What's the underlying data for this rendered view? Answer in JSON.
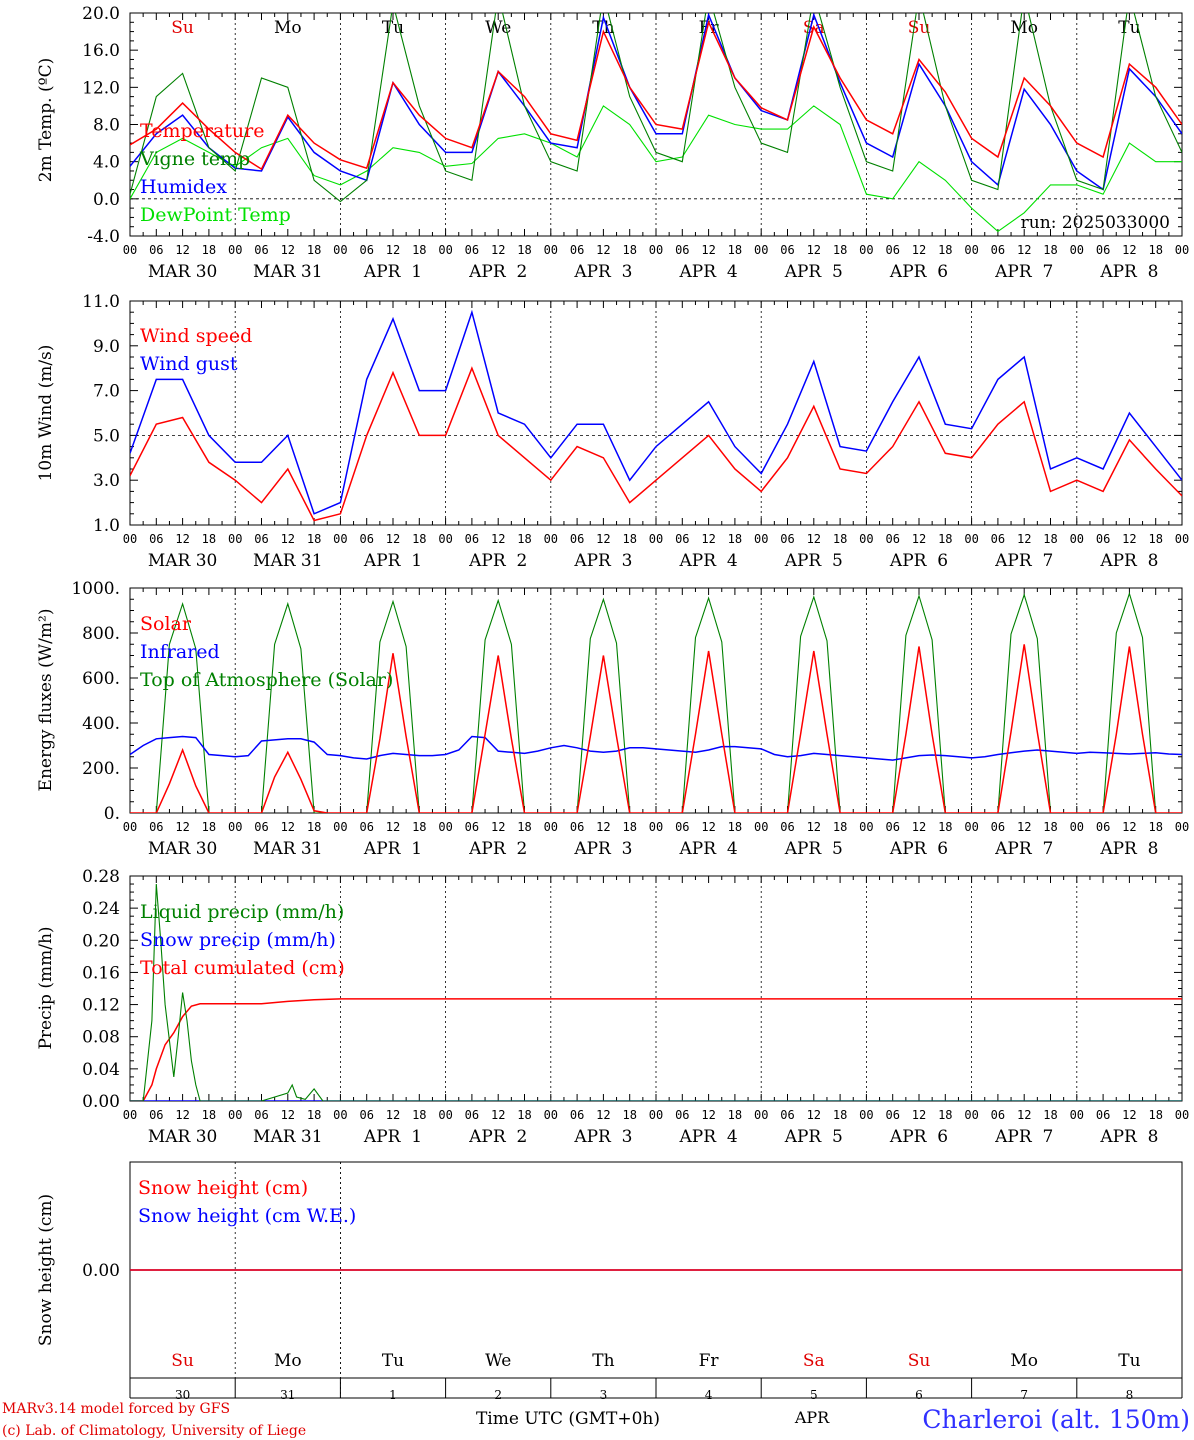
{
  "days": {
    "weekday": [
      "Su",
      "Mo",
      "Tu",
      "We",
      "Th",
      "Fr",
      "Sa",
      "Su",
      "Mo",
      "Tu"
    ],
    "weekday_color": [
      "#e00000",
      "#000000",
      "#000000",
      "#000000",
      "#000000",
      "#000000",
      "#e00000",
      "#e00000",
      "#000000",
      "#000000"
    ],
    "date_label": [
      "MAR 30",
      "MAR 31",
      "APR  1",
      "APR  2",
      "APR  3",
      "APR  4",
      "APR  5",
      "APR  6",
      "APR  7",
      "APR  8"
    ],
    "day_number": [
      "30",
      "31",
      "1",
      "2",
      "3",
      "4",
      "5",
      "6",
      "7",
      "8"
    ],
    "hour_ticks": [
      "00",
      "06",
      "12",
      "18"
    ],
    "last_tick": "00"
  },
  "footer": {
    "model_line": "MARv3.14 model forced by GFS",
    "copyright_line": "(c) Lab. of Climatology, University of Liege",
    "xlabel": "Time UTC (GMT+0h)",
    "month_label": "APR",
    "station": "Charleroi (alt. 150m)"
  },
  "colors": {
    "red": "#ff0000",
    "blue": "#0000ff",
    "green": "#008000",
    "lightgreen": "#00e000",
    "axis": "#000000",
    "footer_red": "#e00000",
    "station_blue": "#3030ff"
  },
  "chart_data": [
    {
      "id": "temperature",
      "type": "line",
      "ylabel": "2m Temp. (ºC)",
      "ylim": [
        -4.0,
        20.0
      ],
      "yticks": [
        "-4.0",
        "0.0",
        "4.0",
        "8.0",
        "12.0",
        "16.0",
        "20.0"
      ],
      "ytick_values": [
        -4,
        0,
        4,
        8,
        12,
        16,
        20
      ],
      "ref_line": 0.0,
      "annotation": "run: 2025033000",
      "x_hours": [
        0,
        6,
        12,
        18,
        24,
        30,
        36,
        42,
        48,
        54,
        60,
        66,
        72,
        78,
        84,
        90,
        96,
        102,
        108,
        114,
        120,
        126,
        132,
        138,
        144,
        150,
        156,
        162,
        168,
        174,
        180,
        186,
        192,
        198,
        204,
        210,
        216,
        222,
        228,
        234,
        240
      ],
      "series": [
        {
          "name": "Temperature",
          "color": "#ff0000",
          "values": [
            5.8,
            7.5,
            10.3,
            7.5,
            5.0,
            3.2,
            9.0,
            6.0,
            4.2,
            3.3,
            12.5,
            9.0,
            6.5,
            5.5,
            13.7,
            11.0,
            7.0,
            6.3,
            18.0,
            12.0,
            8.0,
            7.5,
            19.0,
            13.0,
            9.8,
            8.5,
            18.5,
            13.0,
            8.5,
            7.0,
            15.0,
            11.5,
            6.5,
            4.5,
            13.0,
            10.0,
            6.0,
            4.5,
            14.5,
            12.0,
            8.0
          ]
        },
        {
          "name": "Vigne temp",
          "color": "#008000",
          "values": [
            0.5,
            11.0,
            13.5,
            5.5,
            3.0,
            13.0,
            12.0,
            2.0,
            -0.3,
            2.0,
            21.0,
            10.0,
            3.0,
            2.0,
            22.0,
            10.0,
            4.0,
            3.0,
            22.0,
            11.0,
            5.0,
            4.0,
            22.0,
            12.0,
            6.0,
            5.0,
            22.0,
            12.0,
            4.0,
            3.0,
            22.0,
            10.0,
            2.0,
            1.0,
            22.0,
            10.0,
            2.0,
            1.0,
            22.0,
            11.0,
            5.0
          ]
        },
        {
          "name": "Humidex",
          "color": "#0000ff",
          "values": [
            3.5,
            7.0,
            9.0,
            5.5,
            3.3,
            3.0,
            8.8,
            5.0,
            3.0,
            2.0,
            12.5,
            8.0,
            5.0,
            5.0,
            13.7,
            10.0,
            6.0,
            5.5,
            19.5,
            12.0,
            7.0,
            7.0,
            19.8,
            13.0,
            9.5,
            8.5,
            19.8,
            12.5,
            6.0,
            4.5,
            14.5,
            10.0,
            4.0,
            1.5,
            11.8,
            8.0,
            3.0,
            1.0,
            14.0,
            11.0,
            7.0
          ]
        },
        {
          "name": "DewPoint Temp",
          "color": "#00e000",
          "values": [
            0.0,
            5.0,
            6.5,
            5.0,
            3.5,
            5.5,
            6.5,
            2.5,
            1.5,
            3.0,
            5.5,
            5.0,
            3.5,
            3.8,
            6.5,
            7.0,
            6.0,
            4.5,
            10.0,
            8.0,
            4.0,
            4.5,
            9.0,
            8.0,
            7.5,
            7.5,
            10.0,
            8.0,
            0.5,
            0.0,
            4.0,
            2.0,
            -1.0,
            -3.5,
            -1.5,
            1.5,
            1.5,
            0.5,
            6.0,
            4.0,
            4.0
          ]
        }
      ]
    },
    {
      "id": "wind",
      "type": "line",
      "ylabel": "10m Wind (m/s)",
      "ylim": [
        1.0,
        11.0
      ],
      "yticks": [
        "1.0",
        "3.0",
        "5.0",
        "7.0",
        "9.0",
        "11.0"
      ],
      "ytick_values": [
        1,
        3,
        5,
        7,
        9,
        11
      ],
      "ref_line": 5.0,
      "x_hours": [
        0,
        6,
        12,
        18,
        24,
        30,
        36,
        42,
        48,
        54,
        60,
        66,
        72,
        78,
        84,
        90,
        96,
        102,
        108,
        114,
        120,
        126,
        132,
        138,
        144,
        150,
        156,
        162,
        168,
        174,
        180,
        186,
        192,
        198,
        204,
        210,
        216,
        222,
        228,
        234,
        240
      ],
      "series": [
        {
          "name": "Wind speed",
          "color": "#ff0000",
          "values": [
            3.2,
            5.5,
            5.8,
            3.8,
            3.0,
            2.0,
            3.5,
            1.2,
            1.5,
            5.0,
            7.8,
            5.0,
            5.0,
            8.0,
            5.0,
            4.0,
            3.0,
            4.5,
            4.0,
            2.0,
            3.0,
            4.0,
            5.0,
            3.5,
            2.5,
            4.0,
            6.3,
            3.5,
            3.3,
            4.5,
            6.5,
            4.2,
            4.0,
            5.5,
            6.5,
            2.5,
            3.0,
            2.5,
            4.8,
            3.5,
            2.3
          ]
        },
        {
          "name": "Wind gust",
          "color": "#0000ff",
          "values": [
            4.2,
            7.5,
            7.5,
            5.0,
            3.8,
            3.8,
            5.0,
            1.5,
            2.0,
            7.5,
            10.2,
            7.0,
            7.0,
            10.5,
            6.0,
            5.5,
            4.0,
            5.5,
            5.5,
            3.0,
            4.5,
            5.5,
            6.5,
            4.5,
            3.3,
            5.5,
            8.3,
            4.5,
            4.3,
            6.5,
            8.5,
            5.5,
            5.3,
            7.5,
            8.5,
            3.5,
            4.0,
            3.5,
            6.0,
            4.5,
            3.0
          ]
        }
      ]
    },
    {
      "id": "energy",
      "type": "line",
      "ylabel": "Energy fluxes (W/m²)",
      "ylim": [
        0,
        1000
      ],
      "yticks": [
        "0.",
        "200.",
        "400.",
        "600.",
        "800.",
        "1000."
      ],
      "ytick_values": [
        0,
        200,
        400,
        600,
        800,
        1000
      ],
      "x_hours": [
        0,
        3,
        6,
        9,
        12,
        15,
        18,
        21,
        24,
        27,
        30,
        33,
        36,
        39,
        42,
        45,
        48,
        51,
        54,
        57,
        60,
        63,
        66,
        69,
        72,
        75,
        78,
        81,
        84,
        87,
        90,
        93,
        96,
        99,
        102,
        105,
        108,
        111,
        114,
        117,
        120,
        123,
        126,
        129,
        132,
        135,
        138,
        141,
        144,
        147,
        150,
        153,
        156,
        159,
        162,
        165,
        168,
        171,
        174,
        177,
        180,
        183,
        186,
        189,
        192,
        195,
        198,
        201,
        204,
        207,
        210,
        213,
        216,
        219,
        222,
        225,
        228,
        231,
        234,
        237,
        240
      ],
      "series": [
        {
          "name": "Solar",
          "color": "#ff0000",
          "values": [
            0,
            0,
            0,
            130,
            280,
            120,
            0,
            0,
            0,
            0,
            0,
            160,
            270,
            150,
            10,
            0,
            0,
            0,
            0,
            330,
            710,
            340,
            0,
            0,
            0,
            0,
            0,
            350,
            700,
            330,
            0,
            0,
            0,
            0,
            0,
            340,
            700,
            340,
            0,
            0,
            0,
            0,
            0,
            350,
            720,
            350,
            0,
            0,
            0,
            0,
            0,
            350,
            720,
            350,
            0,
            0,
            0,
            0,
            0,
            350,
            740,
            350,
            0,
            0,
            0,
            0,
            0,
            360,
            750,
            360,
            0,
            0,
            0,
            0,
            0,
            350,
            740,
            350,
            0,
            0,
            0
          ]
        },
        {
          "name": "Infrared",
          "color": "#0000ff",
          "values": [
            260,
            300,
            330,
            335,
            340,
            335,
            260,
            255,
            250,
            255,
            320,
            325,
            330,
            330,
            315,
            260,
            255,
            245,
            240,
            255,
            265,
            260,
            255,
            255,
            260,
            280,
            340,
            335,
            275,
            270,
            265,
            275,
            290,
            300,
            290,
            275,
            270,
            275,
            290,
            290,
            285,
            280,
            275,
            270,
            280,
            295,
            295,
            290,
            285,
            260,
            250,
            255,
            265,
            260,
            255,
            250,
            245,
            240,
            235,
            245,
            255,
            258,
            255,
            250,
            245,
            250,
            260,
            268,
            275,
            280,
            275,
            270,
            265,
            270,
            268,
            265,
            262,
            265,
            268,
            262,
            260
          ]
        },
        {
          "name": "Top of Atmosphere (Solar)",
          "color": "#008000",
          "values": [
            0,
            0,
            0,
            750,
            930,
            730,
            0,
            0,
            0,
            0,
            0,
            750,
            930,
            730,
            0,
            0,
            0,
            0,
            0,
            760,
            940,
            740,
            0,
            0,
            0,
            0,
            0,
            770,
            945,
            750,
            0,
            0,
            0,
            0,
            0,
            775,
            950,
            755,
            0,
            0,
            0,
            0,
            0,
            780,
            955,
            760,
            0,
            0,
            0,
            0,
            0,
            785,
            960,
            765,
            0,
            0,
            0,
            0,
            0,
            790,
            965,
            770,
            0,
            0,
            0,
            0,
            0,
            795,
            970,
            775,
            0,
            0,
            0,
            0,
            0,
            800,
            975,
            780,
            0,
            0,
            0
          ]
        }
      ]
    },
    {
      "id": "precip",
      "type": "line",
      "ylabel": "Precip (mm/h)",
      "ylim": [
        0,
        0.28
      ],
      "yticks": [
        "0.00",
        "0.04",
        "0.08",
        "0.12",
        "0.16",
        "0.20",
        "0.24",
        "0.28"
      ],
      "ytick_values": [
        0,
        0.04,
        0.08,
        0.12,
        0.16,
        0.2,
        0.24,
        0.28
      ],
      "series": [
        {
          "name": "Liquid precip (mm/h)",
          "color": "#008000",
          "x_hours": [
            0,
            3,
            5,
            6,
            7,
            8,
            10,
            11,
            12,
            13,
            14,
            15,
            16,
            18,
            24,
            30,
            36,
            37,
            38,
            40,
            42,
            44,
            48,
            240
          ],
          "values": [
            0,
            0,
            0.1,
            0.27,
            0.2,
            0.12,
            0.03,
            0.08,
            0.135,
            0.1,
            0.05,
            0.02,
            0,
            0,
            0,
            0,
            0.01,
            0.02,
            0.005,
            0.002,
            0.015,
            0,
            0,
            0
          ]
        },
        {
          "name": "Snow precip (mm/h)",
          "color": "#0000ff",
          "x_hours": [
            0,
            240
          ],
          "values": [
            0,
            0
          ]
        },
        {
          "name": "Total cumulated (cm)",
          "color": "#ff0000",
          "x_hours": [
            0,
            3,
            5,
            6,
            8,
            10,
            12,
            14,
            16,
            18,
            24,
            30,
            36,
            42,
            48,
            240
          ],
          "values": [
            0,
            0,
            0.02,
            0.04,
            0.07,
            0.085,
            0.105,
            0.118,
            0.121,
            0.121,
            0.121,
            0.121,
            0.124,
            0.126,
            0.127,
            0.127
          ]
        }
      ]
    },
    {
      "id": "snow",
      "type": "line",
      "ylabel": "Snow height (cm)",
      "ylim": [
        -1,
        1
      ],
      "yticks": [
        "0.00"
      ],
      "ytick_values": [
        0
      ],
      "x_hours": [
        0,
        240
      ],
      "series": [
        {
          "name": "Snow height (cm)",
          "color": "#ff0000",
          "values": [
            0,
            0
          ]
        },
        {
          "name": "Snow height (cm W.E.)",
          "color": "#0000ff",
          "values": [
            0,
            0
          ]
        }
      ]
    }
  ]
}
